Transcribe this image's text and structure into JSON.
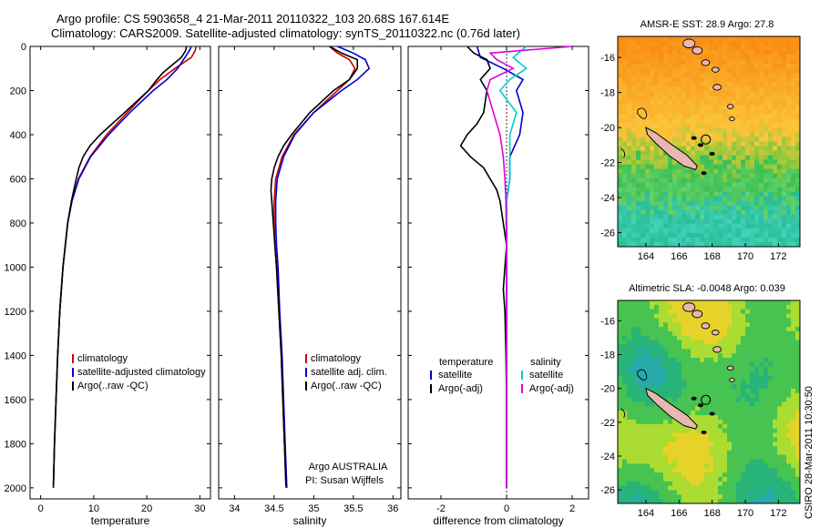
{
  "header": {
    "line1": "Argo profile: CS 5903658_4 21-Mar-2011 20110322_103 20.68S 167.614E",
    "line2": "Climatology: CARS2009. Satellite-adjusted climatology: synTS_20110322.nc (0.76d later)"
  },
  "side_label": "CSIRO 28-Mar-2011 10:30:50",
  "chart_data": [
    {
      "id": "temperature",
      "type": "line",
      "xlabel": "temperature",
      "xlim": [
        -2,
        32
      ],
      "xticks": [
        0,
        10,
        20,
        30
      ],
      "ylim": [
        0,
        2050
      ],
      "yticks": [
        0,
        200,
        400,
        600,
        800,
        1000,
        1200,
        1400,
        1600,
        1800,
        2000
      ],
      "legend": [
        "climatology",
        "satellite-adjusted climatology",
        "Argo(..raw -QC)"
      ],
      "series": [
        {
          "name": "climatology",
          "color": "#cc0000",
          "depth": [
            0,
            20,
            50,
            100,
            150,
            200,
            300,
            400,
            500,
            600,
            700,
            800,
            1000,
            1200,
            1400,
            1600,
            1800,
            2000
          ],
          "values": [
            29.3,
            29.1,
            28.4,
            25.3,
            22.5,
            20.3,
            16.3,
            12.4,
            9.3,
            7.1,
            5.9,
            5.1,
            4.2,
            3.6,
            3.2,
            2.9,
            2.6,
            2.4
          ]
        },
        {
          "name": "satellite-adjusted climatology",
          "color": "#0000cc",
          "depth": [
            0,
            20,
            50,
            100,
            150,
            200,
            300,
            400,
            500,
            600,
            700,
            800,
            1000,
            1200,
            1400,
            1600,
            1800,
            2000
          ],
          "values": [
            28.4,
            28.0,
            27.2,
            25.8,
            23.8,
            21.2,
            16.8,
            12.8,
            9.4,
            7.2,
            5.9,
            5.1,
            4.2,
            3.6,
            3.2,
            2.9,
            2.6,
            2.4
          ]
        },
        {
          "name": "Argo(..raw -QC)",
          "color": "#000000",
          "depth": [
            0,
            20,
            50,
            80,
            120,
            160,
            200,
            300,
            400,
            450,
            500,
            550,
            600,
            700,
            800,
            1000,
            1200,
            1400,
            1600,
            1800,
            1990
          ],
          "values": [
            27.5,
            27.3,
            26.5,
            25.0,
            23.0,
            21.6,
            20.3,
            15.8,
            11.2,
            9.3,
            8.0,
            7.2,
            6.7,
            5.8,
            5.1,
            4.2,
            3.6,
            3.2,
            2.9,
            2.6,
            2.4
          ]
        }
      ]
    },
    {
      "id": "salinity",
      "type": "line",
      "xlabel": "salinity",
      "xlim": [
        33.8,
        36.1
      ],
      "xticks": [
        34,
        34.5,
        35,
        35.5,
        36
      ],
      "ylim": [
        0,
        2050
      ],
      "legend": [
        "climatology",
        "satellite adj. clim.",
        "Argo(..raw -QC)"
      ],
      "annotation1": "Argo AUSTRALIA",
      "annotation2": "PI: Susan Wijffels",
      "series": [
        {
          "name": "climatology",
          "color": "#cc0000",
          "depth": [
            0,
            30,
            60,
            100,
            150,
            200,
            300,
            400,
            500,
            600,
            700,
            800,
            900,
            1000,
            1200,
            1400,
            1600,
            1800,
            2000
          ],
          "values": [
            35.2,
            35.3,
            35.45,
            35.52,
            35.45,
            35.3,
            35.0,
            34.75,
            34.6,
            34.52,
            34.5,
            34.5,
            34.51,
            34.53,
            34.56,
            34.59,
            34.61,
            34.63,
            34.65
          ]
        },
        {
          "name": "satellite adj. clim.",
          "color": "#0000cc",
          "depth": [
            0,
            30,
            60,
            100,
            150,
            200,
            300,
            400,
            500,
            600,
            700,
            800,
            900,
            1000,
            1200,
            1400,
            1600,
            1800,
            2000
          ],
          "values": [
            35.3,
            35.5,
            35.65,
            35.7,
            35.55,
            35.35,
            35.0,
            34.76,
            34.62,
            34.54,
            34.52,
            34.52,
            34.53,
            34.55,
            34.57,
            34.6,
            34.62,
            34.64,
            34.66
          ]
        },
        {
          "name": "Argo(..raw -QC)",
          "color": "#000000",
          "depth": [
            0,
            30,
            60,
            100,
            150,
            200,
            300,
            400,
            450,
            500,
            550,
            600,
            650,
            700,
            800,
            900,
            1000,
            1200,
            1400,
            1600,
            1800,
            1990
          ],
          "values": [
            35.2,
            35.35,
            35.55,
            35.55,
            35.45,
            35.25,
            34.95,
            34.72,
            34.62,
            34.55,
            34.5,
            34.47,
            34.46,
            34.47,
            34.49,
            34.51,
            34.53,
            34.56,
            34.59,
            34.61,
            34.63,
            34.65
          ]
        }
      ]
    },
    {
      "id": "difference",
      "type": "line",
      "xlabel": "difference from climatology",
      "xlim": [
        -3,
        2.5
      ],
      "xticks": [
        -2,
        0,
        2
      ],
      "ylim": [
        0,
        2050
      ],
      "legend_headers": [
        "temperature",
        "salinity"
      ],
      "legend": [
        "satellite",
        "Argo(-adj)",
        "satellite",
        "Argo(-adj)"
      ],
      "series": [
        {
          "name": "temperature satellite",
          "color": "#0000cc",
          "depth": [
            0,
            50,
            100,
            150,
            200,
            300,
            400,
            500,
            600,
            700,
            800,
            1000,
            1200,
            1500,
            2000
          ],
          "values": [
            -0.9,
            -0.8,
            -0.1,
            0.5,
            0.3,
            0.5,
            0.4,
            0.1,
            0.1,
            0.0,
            0.0,
            0.0,
            0.0,
            0.0,
            0.0
          ]
        },
        {
          "name": "temperature Argo(-adj)",
          "color": "#000000",
          "depth": [
            0,
            30,
            60,
            100,
            150,
            200,
            300,
            350,
            400,
            450,
            500,
            550,
            600,
            650,
            700,
            800,
            900,
            1000,
            1100,
            1200,
            1400,
            1600,
            1800,
            2000
          ],
          "values": [
            -1.2,
            -1.0,
            -0.6,
            -0.5,
            -0.8,
            -0.6,
            -0.7,
            -0.9,
            -1.2,
            -1.4,
            -1.1,
            -0.7,
            -0.5,
            -0.3,
            -0.2,
            -0.1,
            0.0,
            -0.05,
            -0.1,
            -0.05,
            -0.02,
            0.0,
            0.0,
            0.0
          ]
        },
        {
          "name": "salinity satellite",
          "color": "#00cccc",
          "depth": [
            0,
            50,
            100,
            150,
            200,
            300,
            400,
            500,
            600,
            700,
            800,
            1000,
            1200,
            1500,
            2000
          ],
          "values": [
            0.6,
            0.2,
            0.6,
            0.1,
            -0.2,
            0.3,
            0.1,
            0.1,
            0.1,
            0.0,
            0.0,
            0.0,
            0.0,
            0.0,
            0.0
          ]
        },
        {
          "name": "salinity Argo(-adj)",
          "color": "#dd00dd",
          "depth": [
            0,
            30,
            60,
            100,
            150,
            200,
            300,
            400,
            500,
            600,
            700,
            800,
            900,
            1000,
            1200,
            1400,
            1600,
            1800,
            2000
          ],
          "values": [
            2.0,
            -0.5,
            -0.3,
            0.2,
            -0.5,
            -0.6,
            -0.4,
            -0.2,
            -0.1,
            -0.05,
            -0.02,
            -0.01,
            0.0,
            0.0,
            0.0,
            0.0,
            0.0,
            0.0,
            0.0
          ]
        }
      ]
    },
    {
      "id": "sst_map",
      "type": "heatmap",
      "title": "AMSR-E SST: 28.9 Argo: 27.8",
      "xticks": [
        164,
        166,
        168,
        170,
        172
      ],
      "yticks": [
        -16,
        -18,
        -20,
        -22,
        -24,
        -26
      ],
      "xlim": [
        162.3,
        173.3
      ],
      "ylim": [
        -26.8,
        -14.8
      ]
    },
    {
      "id": "sla_map",
      "type": "heatmap",
      "title": "Altimetric SLA: -0.0048 Argo: 0.039",
      "xticks": [
        164,
        166,
        168,
        170,
        172
      ],
      "yticks": [
        -16,
        -18,
        -20,
        -22,
        -24,
        -26
      ],
      "xlim": [
        162.3,
        173.3
      ],
      "ylim": [
        -26.8,
        -14.8
      ]
    }
  ]
}
